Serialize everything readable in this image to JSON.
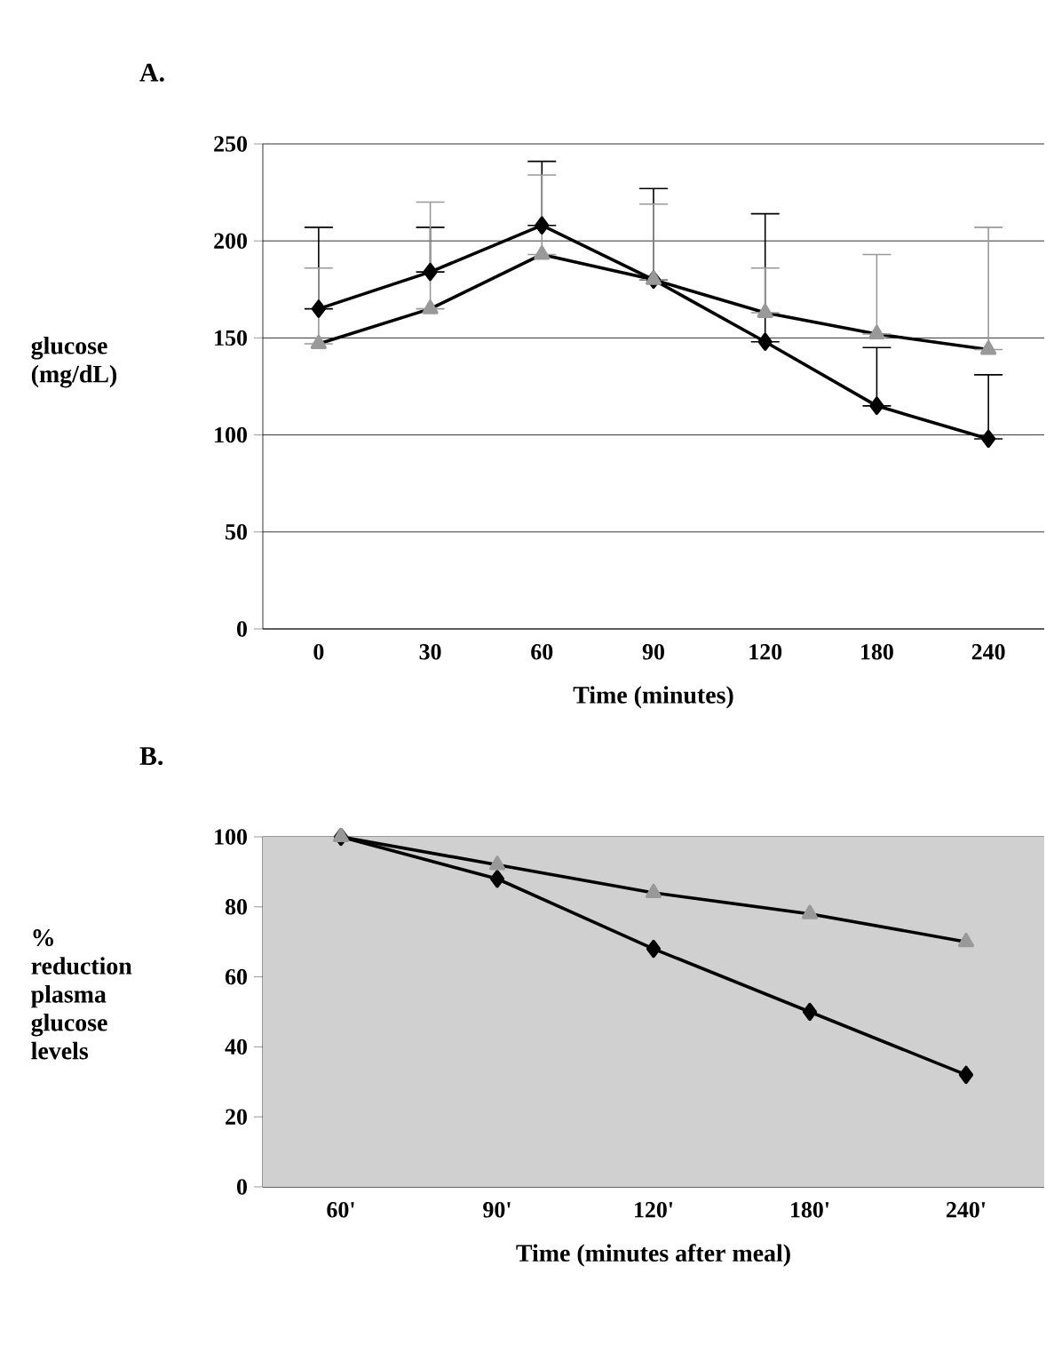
{
  "chart_data": [
    {
      "type": "line",
      "title": "A.",
      "xlabel": "Time (minutes)",
      "ylabel": "glucose (mg/dL)",
      "categories": [
        "0",
        "30",
        "60",
        "90",
        "120",
        "180",
        "240"
      ],
      "ylim": [
        0,
        250
      ],
      "yticks": [
        0,
        50,
        100,
        150,
        200,
        250
      ],
      "grid": "y",
      "series": [
        {
          "color": "#000000",
          "marker": "diamond",
          "values": [
            165,
            184,
            208,
            180,
            148,
            115,
            98
          ],
          "errors": [
            [
              165,
              207
            ],
            [
              184,
              207
            ],
            [
              208,
              241
            ],
            [
              180,
              227
            ],
            [
              148,
              214
            ],
            [
              115,
              145
            ],
            [
              98,
              131
            ]
          ]
        },
        {
          "color": "#999999",
          "marker": "triangle",
          "values": [
            147,
            165,
            193,
            180,
            163,
            152,
            144
          ],
          "errors": [
            [
              147,
              186
            ],
            [
              165,
              220
            ],
            [
              193,
              234
            ],
            [
              180,
              219
            ],
            [
              163,
              186
            ],
            [
              152,
              193
            ],
            [
              144,
              207
            ]
          ]
        }
      ]
    },
    {
      "type": "line",
      "title": "B.",
      "xlabel": "Time (minutes after meal)",
      "ylabel": "% reduction plasma glucose levels",
      "categories": [
        "60'",
        "90'",
        "120'",
        "180'",
        "240'"
      ],
      "ylim": [
        0,
        100
      ],
      "yticks": [
        0,
        20,
        40,
        60,
        80,
        100
      ],
      "grid": "y",
      "series": [
        {
          "color": "#000000",
          "marker": "diamond",
          "values": [
            100,
            88,
            68,
            50,
            32
          ]
        },
        {
          "color": "#999999",
          "marker": "triangle",
          "values": [
            100,
            92,
            84,
            78,
            70
          ]
        }
      ]
    }
  ]
}
